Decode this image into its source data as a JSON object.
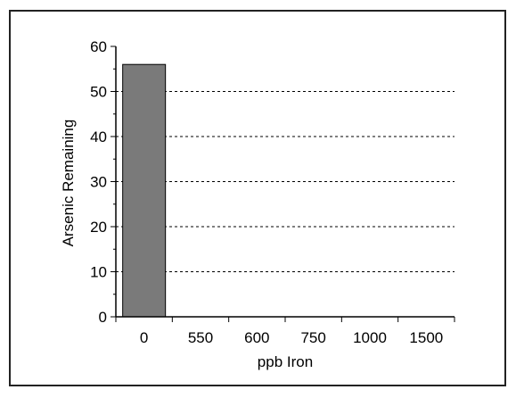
{
  "colors": {
    "background": "#ffffff",
    "border": "#222222",
    "bar_fill": "#7a7a7a",
    "grid": "#000000",
    "axis": "#000000"
  },
  "chart_data": {
    "type": "bar",
    "title": "",
    "xlabel": "ppb Iron",
    "ylabel": "Arsenic Remaining",
    "categories": [
      "0",
      "550",
      "600",
      "750",
      "1000",
      "1500"
    ],
    "series": [
      {
        "values": [
          56,
          0,
          0,
          0,
          0,
          0
        ]
      }
    ],
    "ylim": [
      0,
      60
    ],
    "yticks": [
      0,
      10,
      20,
      30,
      40,
      50,
      60
    ],
    "grid": {
      "y": true,
      "style": "dashed",
      "lines": [
        10,
        20,
        30,
        40,
        50
      ]
    },
    "legend": "none"
  }
}
